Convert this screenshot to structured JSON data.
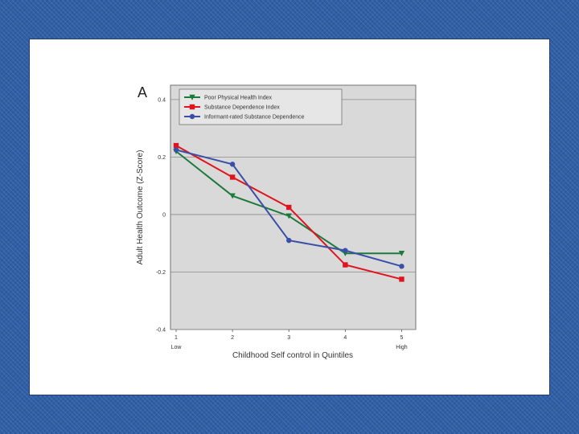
{
  "chart_data": {
    "type": "line",
    "panel_label": "A",
    "title": "",
    "xlabel": "Childhood Self control in Quintiles",
    "ylabel": "Adult Health Outcome (Z-Score)",
    "x": [
      1,
      2,
      3,
      4,
      5
    ],
    "x_tick_labels": [
      "1",
      "2",
      "3",
      "4",
      "5"
    ],
    "x_sub_labels": {
      "1": "Low",
      "5": "High"
    },
    "xlim": [
      0.9,
      5.25
    ],
    "ylim": [
      -0.4,
      0.45
    ],
    "y_ticks": [
      -0.4,
      -0.2,
      0,
      0.2,
      0.4
    ],
    "y_tick_labels": [
      "-0.4",
      "-0.2",
      "0",
      "0.2",
      "0.4"
    ],
    "grid": true,
    "legend_position": "top",
    "background": "#d9d9d9",
    "series": [
      {
        "name": "Poor Physical Health Index",
        "color": "#1e7a3c",
        "marker": "triangle-down",
        "values": [
          0.22,
          0.065,
          -0.005,
          -0.135,
          -0.135
        ]
      },
      {
        "name": "Substance Dependence Index",
        "color": "#e0141e",
        "marker": "square",
        "values": [
          0.24,
          0.13,
          0.025,
          -0.175,
          -0.225
        ]
      },
      {
        "name": "Informant-rated Substance Dependence",
        "color": "#3a4fa8",
        "marker": "circle",
        "values": [
          0.225,
          0.175,
          -0.09,
          -0.125,
          -0.18
        ]
      }
    ]
  }
}
